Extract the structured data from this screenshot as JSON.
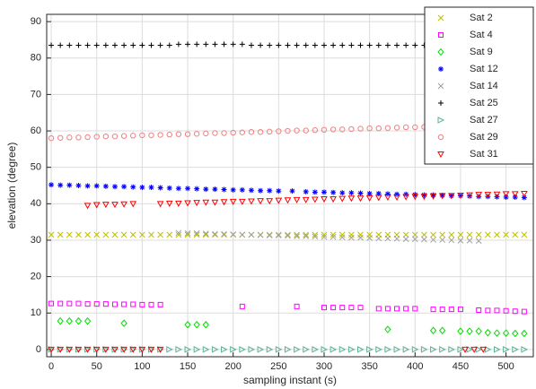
{
  "chart_data": {
    "type": "scatter",
    "xlabel": "sampling instant (s)",
    "ylabel": "elevation (degree)",
    "xlim": [
      -5,
      530
    ],
    "ylim": [
      -2,
      92
    ],
    "xticks": [
      0,
      50,
      100,
      150,
      200,
      250,
      300,
      350,
      400,
      450,
      500
    ],
    "yticks": [
      0,
      10,
      20,
      30,
      40,
      50,
      60,
      70,
      80,
      90
    ],
    "grid": true,
    "legend": "upper right",
    "series": [
      {
        "name": "Sat 2",
        "color": "#bfbf00",
        "marker": "x",
        "x": [
          0,
          10,
          20,
          30,
          40,
          50,
          60,
          70,
          80,
          90,
          100,
          110,
          120,
          130,
          140,
          150,
          160,
          170,
          180,
          190,
          200,
          210,
          220,
          230,
          240,
          250,
          260,
          270,
          280,
          290,
          300,
          310,
          320,
          330,
          340,
          350,
          360,
          370,
          380,
          390,
          400,
          410,
          420,
          430,
          440,
          450,
          460,
          470,
          480,
          490,
          500,
          510,
          520
        ],
        "values": [
          31.5,
          31.5,
          31.5,
          31.5,
          31.5,
          31.5,
          31.5,
          31.5,
          31.5,
          31.5,
          31.5,
          31.5,
          31.5,
          31.5,
          31.5,
          31.5,
          31.5,
          31.5,
          31.5,
          31.5,
          31.5,
          31.5,
          31.5,
          31.5,
          31.5,
          31.5,
          31.5,
          31.5,
          31.5,
          31.5,
          31.5,
          31.5,
          31.5,
          31.5,
          31.5,
          31.5,
          31.5,
          31.5,
          31.5,
          31.5,
          31.5,
          31.5,
          31.5,
          31.5,
          31.5,
          31.5,
          31.5,
          31.5,
          31.5,
          31.5,
          31.5,
          31.5,
          31.5
        ]
      },
      {
        "name": "Sat 4",
        "color": "#ff00ff",
        "marker": "square",
        "x": [
          0,
          10,
          20,
          30,
          40,
          50,
          60,
          70,
          80,
          90,
          100,
          110,
          120,
          210,
          270,
          300,
          310,
          320,
          330,
          340,
          360,
          370,
          380,
          390,
          400,
          420,
          430,
          440,
          450,
          470,
          480,
          490,
          500,
          510,
          520
        ],
        "values": [
          12.6,
          12.6,
          12.6,
          12.6,
          12.5,
          12.5,
          12.5,
          12.4,
          12.4,
          12.4,
          12.3,
          12.3,
          12.3,
          11.8,
          11.8,
          11.5,
          11.5,
          11.5,
          11.5,
          11.5,
          11.2,
          11.2,
          11.2,
          11.2,
          11.2,
          11,
          11,
          11,
          11,
          10.8,
          10.7,
          10.7,
          10.6,
          10.5,
          10.4
        ]
      },
      {
        "name": "Sat 9",
        "color": "#00e000",
        "marker": "diamond",
        "x": [
          10,
          20,
          30,
          40,
          80,
          150,
          160,
          170,
          370,
          420,
          430,
          450,
          460,
          470,
          480,
          490,
          500,
          510,
          520
        ],
        "values": [
          7.8,
          7.8,
          7.8,
          7.8,
          7.2,
          6.8,
          6.8,
          6.8,
          5.5,
          5.2,
          5.2,
          5,
          5,
          5,
          4.6,
          4.5,
          4.5,
          4.4,
          4.4
        ]
      },
      {
        "name": "Sat 12",
        "color": "#0000ff",
        "marker": "asterisk",
        "x": [
          0,
          10,
          20,
          30,
          40,
          50,
          60,
          70,
          80,
          90,
          100,
          110,
          120,
          130,
          140,
          150,
          160,
          170,
          180,
          190,
          200,
          210,
          220,
          230,
          240,
          250,
          265,
          280,
          290,
          300,
          310,
          320,
          330,
          340,
          350,
          360,
          370,
          380,
          390,
          400,
          410,
          420,
          430,
          440,
          450,
          460,
          470,
          480,
          490,
          500,
          510,
          520
        ],
        "values": [
          45.2,
          45.1,
          45.1,
          45,
          44.9,
          44.9,
          44.8,
          44.7,
          44.7,
          44.6,
          44.5,
          44.5,
          44.4,
          44.3,
          44.2,
          44.2,
          44.1,
          44,
          44,
          43.9,
          43.8,
          43.8,
          43.7,
          43.6,
          43.6,
          43.5,
          43.5,
          43.3,
          43.2,
          43.2,
          43.1,
          43,
          43,
          42.9,
          42.8,
          42.8,
          42.7,
          42.6,
          42.6,
          42.5,
          42.4,
          42.4,
          42.3,
          42.2,
          42.2,
          42.1,
          42,
          42,
          41.9,
          41.8,
          41.8,
          41.7
        ]
      },
      {
        "name": "Sat 14",
        "color": "#a0a0a0",
        "marker": "x",
        "x": [
          140,
          150,
          160,
          170,
          180,
          190,
          200,
          210,
          220,
          230,
          240,
          250,
          260,
          270,
          280,
          290,
          300,
          310,
          320,
          330,
          340,
          350,
          360,
          370,
          380,
          390,
          400,
          410,
          420,
          430,
          440,
          450,
          460,
          470
        ],
        "values": [
          32,
          31.9,
          31.9,
          31.8,
          31.7,
          31.7,
          31.6,
          31.5,
          31.5,
          31.4,
          31.3,
          31.3,
          31.2,
          31.1,
          31.1,
          31,
          30.9,
          30.9,
          30.8,
          30.7,
          30.7,
          30.6,
          30.5,
          30.5,
          30.4,
          30.3,
          30.3,
          30.2,
          30.1,
          30.1,
          30,
          29.9,
          29.9,
          29.8
        ]
      },
      {
        "name": "Sat 25",
        "color": "#000000",
        "marker": "plus",
        "x": [
          0,
          10,
          20,
          30,
          40,
          50,
          60,
          70,
          80,
          90,
          100,
          110,
          120,
          130,
          140,
          150,
          160,
          170,
          180,
          190,
          200,
          210,
          220,
          230,
          240,
          250,
          260,
          270,
          280,
          290,
          300,
          310,
          320,
          330,
          340,
          350,
          360,
          370,
          380,
          390,
          400,
          410,
          420,
          430,
          440,
          450,
          460,
          470,
          480,
          490,
          500,
          510,
          520
        ],
        "values": [
          83.5,
          83.5,
          83.5,
          83.5,
          83.5,
          83.5,
          83.5,
          83.5,
          83.5,
          83.5,
          83.5,
          83.5,
          83.5,
          83.5,
          83.8,
          83.8,
          83.8,
          83.8,
          83.8,
          83.8,
          83.8,
          83.8,
          83.5,
          83.5,
          83.5,
          83.5,
          83.5,
          83.5,
          83.5,
          83.5,
          83.5,
          83.5,
          83.5,
          83.5,
          83.5,
          83.5,
          83.5,
          83.5,
          83.5,
          83.5,
          83.5,
          83.5,
          83.5,
          83.5,
          83.5,
          83.5,
          83.5,
          83.5,
          83.5,
          83.5,
          83.5,
          83.5,
          83.5
        ]
      },
      {
        "name": "Sat 27",
        "color": "#5fb39b",
        "marker": "triangle-right",
        "x": [
          0,
          10,
          20,
          30,
          40,
          50,
          60,
          70,
          80,
          90,
          100,
          110,
          120,
          130,
          140,
          150,
          160,
          170,
          180,
          190,
          200,
          210,
          220,
          230,
          240,
          250,
          260,
          270,
          280,
          290,
          300,
          310,
          320,
          330,
          340,
          350,
          360,
          370,
          380,
          390,
          400,
          410,
          420,
          430,
          440,
          450,
          460,
          470,
          480,
          490,
          500,
          510,
          520
        ],
        "values": [
          0,
          0,
          0,
          0,
          0,
          0,
          0,
          0,
          0,
          0,
          0,
          0,
          0,
          0,
          0,
          0,
          0,
          0,
          0,
          0,
          0,
          0,
          0,
          0,
          0,
          0,
          0,
          0,
          0,
          0,
          0,
          0,
          0,
          0,
          0,
          0,
          0,
          0,
          0,
          0,
          0,
          0,
          0,
          0,
          0,
          0,
          0,
          0,
          0,
          0,
          0,
          0,
          0
        ]
      },
      {
        "name": "Sat 29",
        "color": "#f08080",
        "marker": "circle",
        "x": [
          0,
          10,
          20,
          30,
          40,
          50,
          60,
          70,
          80,
          90,
          100,
          110,
          120,
          130,
          140,
          150,
          160,
          170,
          180,
          190,
          200,
          210,
          220,
          230,
          240,
          250,
          260,
          270,
          280,
          290,
          300,
          310,
          320,
          330,
          340,
          350,
          360,
          370,
          380,
          390,
          400,
          410,
          420,
          430,
          440,
          450,
          460,
          470,
          480,
          490,
          500,
          510,
          520
        ],
        "values": [
          58,
          58.1,
          58.2,
          58.2,
          58.3,
          58.4,
          58.5,
          58.5,
          58.6,
          58.7,
          58.8,
          58.8,
          58.9,
          59,
          59.1,
          59.1,
          59.2,
          59.3,
          59.4,
          59.4,
          59.5,
          59.6,
          59.7,
          59.7,
          59.8,
          59.9,
          60,
          60.1,
          60.1,
          60.2,
          60.3,
          60.4,
          60.4,
          60.5,
          60.6,
          60.7,
          60.7,
          60.8,
          60.9,
          61,
          61,
          61.1,
          61.2,
          61.3,
          61.3,
          61.4,
          61.5,
          61.6,
          61.6,
          61.7,
          61.8,
          61.9,
          62
        ]
      },
      {
        "name": "Sat 31",
        "color": "#ff0000",
        "marker": "triangle-down",
        "x": [
          0,
          10,
          20,
          30,
          40,
          50,
          60,
          70,
          80,
          90,
          100,
          110,
          120,
          40,
          50,
          60,
          70,
          80,
          90,
          120,
          130,
          140,
          150,
          160,
          170,
          180,
          190,
          200,
          210,
          220,
          230,
          240,
          250,
          260,
          270,
          280,
          290,
          300,
          310,
          320,
          330,
          340,
          350,
          360,
          370,
          380,
          390,
          400,
          410,
          420,
          430,
          440,
          450,
          460,
          470,
          480,
          490,
          500,
          510,
          520,
          455,
          465,
          475
        ],
        "values": [
          0,
          0,
          0,
          0,
          0,
          0,
          0,
          0,
          0,
          0,
          0,
          0,
          0,
          39.5,
          39.7,
          39.8,
          39.8,
          39.9,
          40,
          40,
          40.1,
          40.1,
          40.2,
          40.3,
          40.4,
          40.4,
          40.5,
          40.6,
          40.6,
          40.7,
          40.8,
          40.8,
          40.9,
          41,
          41.1,
          41.1,
          41.2,
          41.3,
          41.3,
          41.4,
          41.5,
          41.5,
          41.6,
          41.7,
          41.8,
          41.8,
          41.9,
          42,
          42,
          42.1,
          42.2,
          42.2,
          42.3,
          42.4,
          42.5,
          42.5,
          42.6,
          42.7,
          42.7,
          42.8,
          0,
          0,
          0
        ]
      }
    ]
  }
}
